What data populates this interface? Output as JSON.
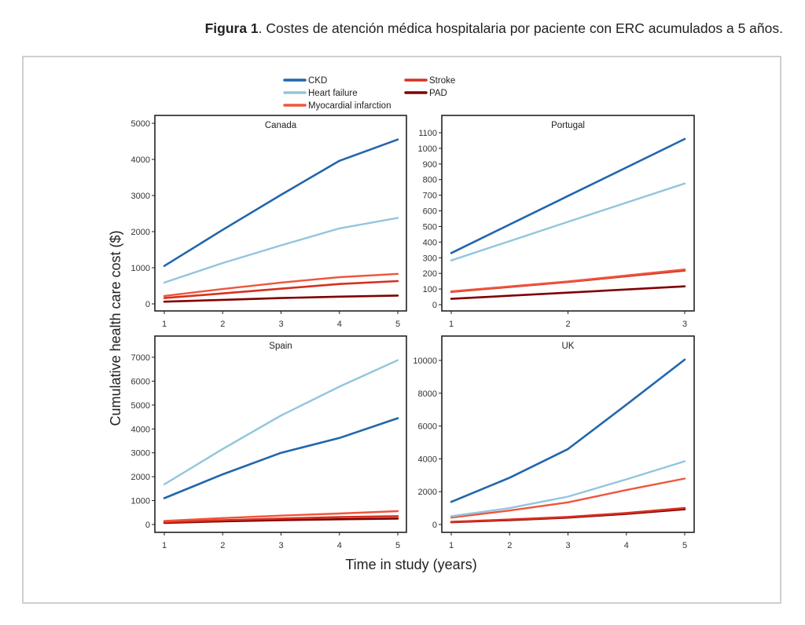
{
  "caption": {
    "label": "Figura 1",
    "text": ". Costes de atención médica hospitalaria por paciente con ERC acumulados a 5 años."
  },
  "chart_data": {
    "type": "line",
    "title": "Costes de atención médica hospitalaria por paciente con ERC acumulados a 5 años",
    "xlabel": "Time in study (years)",
    "ylabel": "Cumulative health care cost ($)",
    "legend": {
      "placement": "top",
      "entries": [
        {
          "name": "CKD",
          "color": "#2166ac"
        },
        {
          "name": "Heart failure",
          "color": "#92c5de"
        },
        {
          "name": "Myocardial infarction",
          "color": "#ef553b"
        },
        {
          "name": "Stroke",
          "color": "#d7301f"
        },
        {
          "name": "PAD",
          "color": "#7f0000"
        }
      ]
    },
    "panels": [
      {
        "name": "Canada",
        "x": [
          1,
          2,
          3,
          4,
          5
        ],
        "xticks": [
          "1",
          "2",
          "3",
          "4",
          "5"
        ],
        "ylim": [
          0,
          5000
        ],
        "yticks": [
          0,
          1000,
          2000,
          3000,
          4000,
          5000
        ],
        "grid": false,
        "series": [
          {
            "name": "CKD",
            "values": [
              1050,
              2050,
              3020,
              3960,
              4550
            ]
          },
          {
            "name": "Heart failure",
            "values": [
              590,
              1130,
              1620,
              2090,
              2380
            ]
          },
          {
            "name": "Myocardial infarction",
            "values": [
              220,
              410,
              590,
              740,
              830
            ]
          },
          {
            "name": "Stroke",
            "values": [
              160,
              290,
              420,
              550,
              630
            ]
          },
          {
            "name": "PAD",
            "values": [
              60,
              110,
              160,
              200,
              230
            ]
          }
        ]
      },
      {
        "name": "Portugal",
        "x": [
          1,
          2,
          3
        ],
        "xticks": [
          "1",
          "2",
          "3"
        ],
        "ylim": [
          0,
          1100
        ],
        "yticks": [
          0,
          100,
          200,
          300,
          400,
          500,
          600,
          700,
          800,
          900,
          1000,
          1100
        ],
        "grid": false,
        "series": [
          {
            "name": "CKD",
            "values": [
              330,
              695,
              1060
            ]
          },
          {
            "name": "Heart failure",
            "values": [
              283,
              530,
              775
            ]
          },
          {
            "name": "Myocardial infarction",
            "values": [
              85,
              148,
              225
            ]
          },
          {
            "name": "Stroke",
            "values": [
              82,
              145,
              218
            ]
          },
          {
            "name": "PAD",
            "values": [
              37,
              77,
              117
            ]
          }
        ]
      },
      {
        "name": "Spain",
        "x": [
          1,
          2,
          3,
          4,
          5
        ],
        "xticks": [
          "1",
          "2",
          "3",
          "4",
          "5"
        ],
        "ylim": [
          0,
          7000
        ],
        "yticks": [
          0,
          1000,
          2000,
          3000,
          4000,
          5000,
          6000,
          7000
        ],
        "grid": false,
        "series": [
          {
            "name": "CKD",
            "values": [
              1100,
              2100,
              3000,
              3620,
              4450
            ]
          },
          {
            "name": "Heart failure",
            "values": [
              1680,
              3160,
              4560,
              5770,
              6880
            ]
          },
          {
            "name": "Myocardial infarction",
            "values": [
              150,
              270,
              370,
              460,
              560
            ]
          },
          {
            "name": "Stroke",
            "values": [
              100,
              180,
              250,
              310,
              350
            ]
          },
          {
            "name": "PAD",
            "values": [
              70,
              130,
              180,
              220,
              250
            ]
          }
        ]
      },
      {
        "name": "UK",
        "x": [
          1,
          2,
          3,
          4,
          5
        ],
        "xticks": [
          "1",
          "2",
          "3",
          "4",
          "5"
        ],
        "ylim": [
          0,
          10000
        ],
        "yticks": [
          0,
          2000,
          4000,
          6000,
          8000,
          10000
        ],
        "grid": false,
        "series": [
          {
            "name": "CKD",
            "values": [
              1380,
              2850,
              4600,
              7300,
              10050
            ]
          },
          {
            "name": "Heart failure",
            "values": [
              500,
              1000,
              1700,
              2750,
              3850
            ]
          },
          {
            "name": "Myocardial infarction",
            "values": [
              420,
              850,
              1350,
              2100,
              2800
            ]
          },
          {
            "name": "Stroke",
            "values": [
              160,
              300,
              460,
              700,
              1000
            ]
          },
          {
            "name": "PAD",
            "values": [
              140,
              270,
              420,
              650,
              930
            ]
          }
        ]
      }
    ]
  }
}
